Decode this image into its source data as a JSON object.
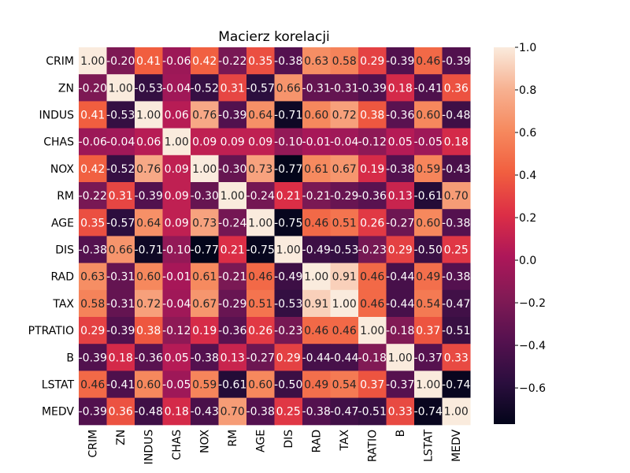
{
  "chart_data": {
    "type": "heatmap",
    "title": "Macierz korelacji",
    "xlabel": "",
    "ylabel": "",
    "labels": [
      "CRIM",
      "ZN",
      "INDUS",
      "CHAS",
      "NOX",
      "RM",
      "AGE",
      "DIS",
      "RAD",
      "TAX",
      "PTRATIO",
      "B",
      "LSTAT",
      "MEDV"
    ],
    "x_tick_labels": [
      "CRIM",
      "ZN",
      "INDUS",
      "CHAS",
      "NOX",
      "RM",
      "AGE",
      "DIS",
      "RAD",
      "TAX",
      "RATIO",
      "B",
      "LSTAT",
      "MEDV"
    ],
    "matrix": [
      [
        1.0,
        -0.2,
        0.41,
        -0.06,
        0.42,
        -0.22,
        0.35,
        -0.38,
        0.63,
        0.58,
        0.29,
        -0.39,
        0.46,
        -0.39
      ],
      [
        -0.2,
        1.0,
        -0.53,
        -0.04,
        -0.52,
        0.31,
        -0.57,
        0.66,
        -0.31,
        -0.31,
        -0.39,
        0.18,
        -0.41,
        0.36
      ],
      [
        0.41,
        -0.53,
        1.0,
        0.06,
        0.76,
        -0.39,
        0.64,
        -0.71,
        0.6,
        0.72,
        0.38,
        -0.36,
        0.6,
        -0.48
      ],
      [
        -0.06,
        -0.04,
        0.06,
        1.0,
        0.09,
        0.09,
        0.09,
        -0.1,
        -0.01,
        -0.04,
        -0.12,
        0.05,
        -0.05,
        0.18
      ],
      [
        0.42,
        -0.52,
        0.76,
        0.09,
        1.0,
        -0.3,
        0.73,
        -0.77,
        0.61,
        0.67,
        0.19,
        -0.38,
        0.59,
        -0.43
      ],
      [
        -0.22,
        0.31,
        -0.39,
        0.09,
        -0.3,
        1.0,
        -0.24,
        0.21,
        -0.21,
        -0.29,
        -0.36,
        0.13,
        -0.61,
        0.7
      ],
      [
        0.35,
        -0.57,
        0.64,
        0.09,
        0.73,
        -0.24,
        1.0,
        -0.75,
        0.46,
        0.51,
        0.26,
        -0.27,
        0.6,
        -0.38
      ],
      [
        -0.38,
        0.66,
        -0.71,
        -0.1,
        -0.77,
        0.21,
        -0.75,
        1.0,
        -0.49,
        -0.53,
        -0.23,
        0.29,
        -0.5,
        0.25
      ],
      [
        0.63,
        -0.31,
        0.6,
        -0.01,
        0.61,
        -0.21,
        0.46,
        -0.49,
        1.0,
        0.91,
        0.46,
        -0.44,
        0.49,
        -0.38
      ],
      [
        0.58,
        -0.31,
        0.72,
        -0.04,
        0.67,
        -0.29,
        0.51,
        -0.53,
        0.91,
        1.0,
        0.46,
        -0.44,
        0.54,
        -0.47
      ],
      [
        0.29,
        -0.39,
        0.38,
        -0.12,
        0.19,
        -0.36,
        0.26,
        -0.23,
        0.46,
        0.46,
        1.0,
        -0.18,
        0.37,
        -0.51
      ],
      [
        -0.39,
        0.18,
        -0.36,
        0.05,
        -0.38,
        0.13,
        -0.27,
        0.29,
        -0.44,
        -0.44,
        -0.18,
        1.0,
        -0.37,
        0.33
      ],
      [
        0.46,
        -0.41,
        0.6,
        -0.05,
        0.59,
        -0.61,
        0.6,
        -0.5,
        0.49,
        0.54,
        0.37,
        -0.37,
        1.0,
        -0.74
      ],
      [
        -0.39,
        0.36,
        -0.48,
        0.18,
        -0.43,
        0.7,
        -0.38,
        0.25,
        -0.38,
        -0.47,
        -0.51,
        0.33,
        -0.74,
        1.0
      ]
    ],
    "colorbar": {
      "range": [
        -0.77,
        1.0
      ],
      "ticks": [
        1.0,
        0.8,
        0.6,
        0.4,
        0.2,
        0.0,
        -0.2,
        -0.4,
        -0.6
      ],
      "tick_labels": [
        "1.0",
        "0.8",
        "0.6",
        "0.4",
        "0.2",
        "0.0",
        "−0.2",
        "−0.4",
        "−0.6"
      ]
    },
    "colormap": [
      "#03051a",
      "#2b0e3e",
      "#55114f",
      "#811a55",
      "#ad1759",
      "#dc2e46",
      "#f15e3f",
      "#f6895e",
      "#f7b191",
      "#faebdd"
    ],
    "grid": false
  }
}
